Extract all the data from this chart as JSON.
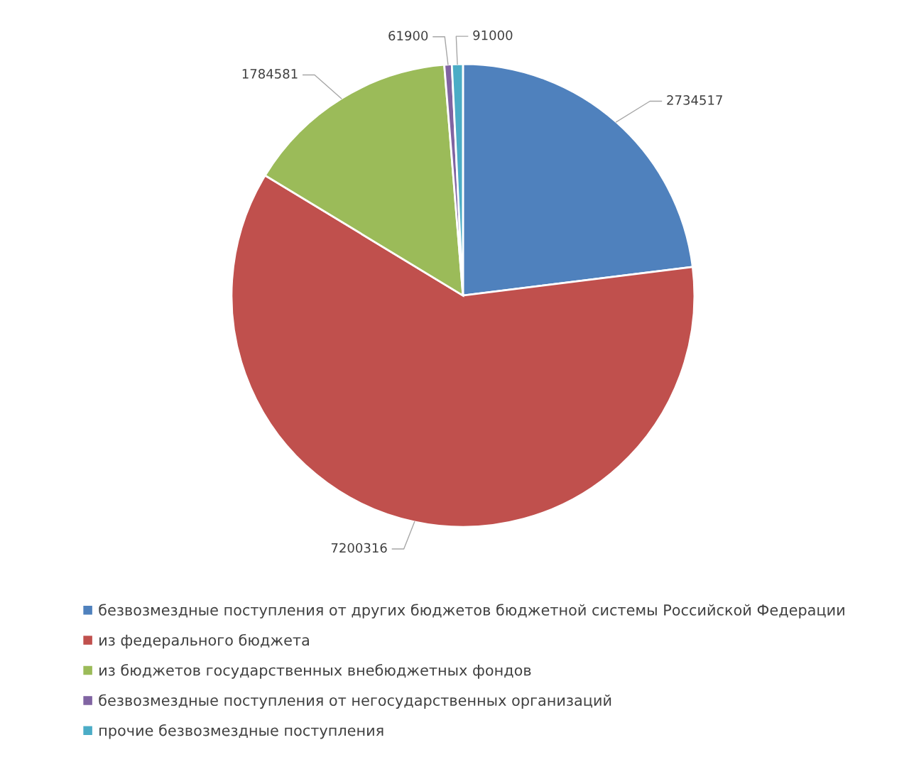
{
  "chart_data": {
    "type": "pie",
    "categories": [
      "безвозмездные поступления от других бюджетов бюджетной системы Российской Федерации",
      "из федерального бюджета",
      "из бюджетов государственных внебюджетных фондов",
      "безвозмездные поступления от негосударственных организаций",
      "прочие безвозмездные поступления"
    ],
    "values": [
      2734517,
      7200316,
      1784581,
      61900,
      91000
    ],
    "colors": [
      "#4f81bd",
      "#c0504d",
      "#9bbb59",
      "#8064a2",
      "#4bacc6"
    ],
    "data_labels": true,
    "legend": "bottom"
  }
}
